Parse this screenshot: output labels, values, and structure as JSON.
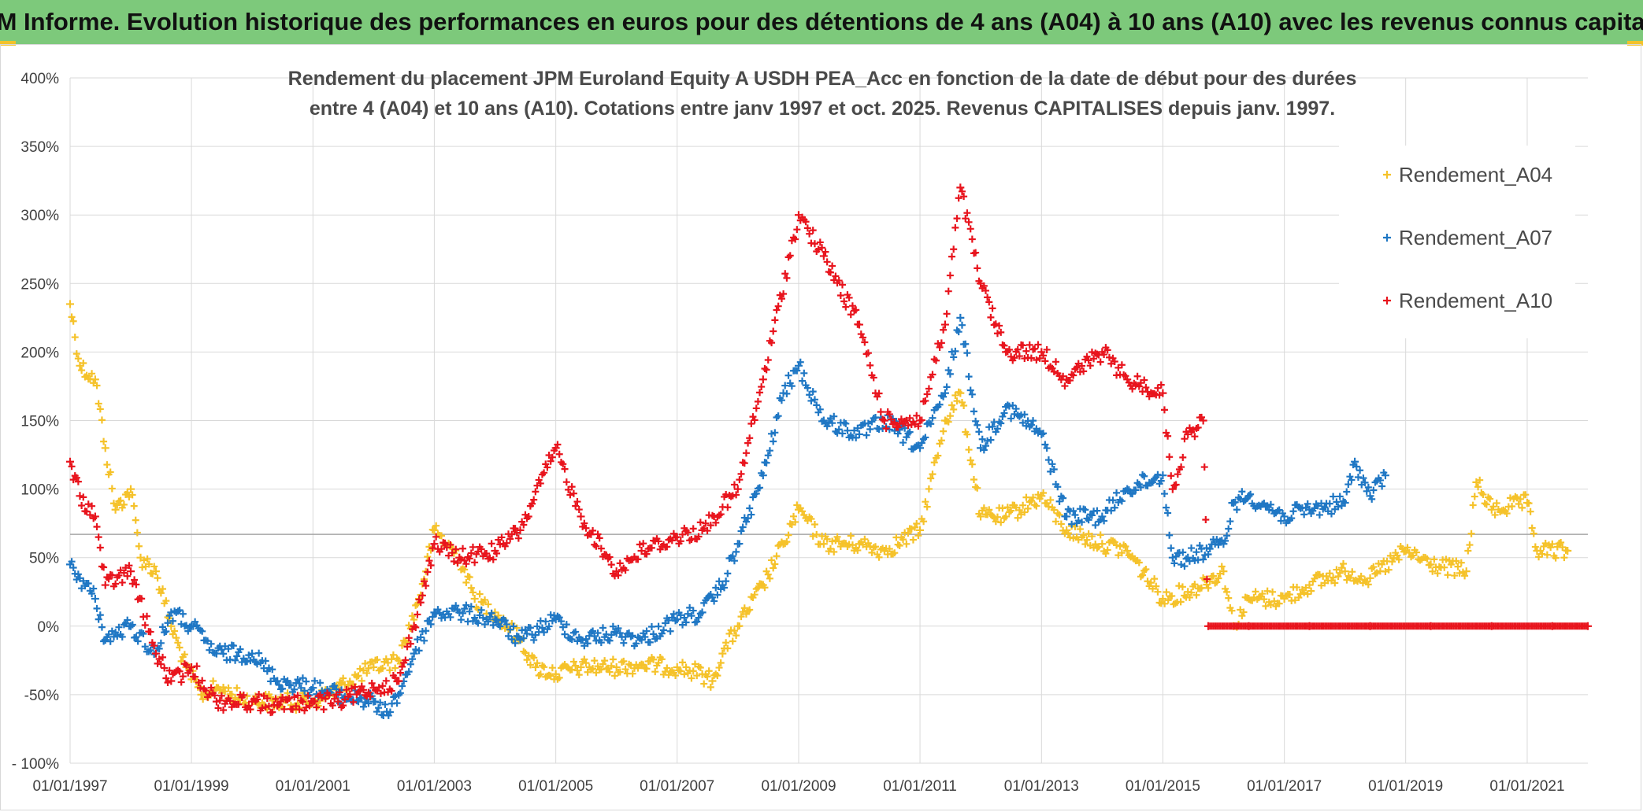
{
  "page": {
    "banner_title": "ADAM Informe. Evolution historique des performances en euros pour des détentions de 4 ans (A04) à 10 ans (A10) avec les revenus connus capitalisés"
  },
  "colors": {
    "banner": "#7dc97b",
    "A04": "#f5c22a",
    "A07": "#1f77c4",
    "A10": "#e8141d",
    "grid": "#d9d9d9",
    "refline": "#a6a6a6"
  },
  "chart_data": {
    "type": "scatter",
    "title_lines": [
      "Rendement du placement JPM Euroland Equity A USDH PEA_Acc en fonction de la date de début pour des durées",
      "entre 4 (A04) et 10 ans (A10). Cotations entre janv 1997 et oct. 2025. Revenus CAPITALISES depuis janv. 1997."
    ],
    "xlabel": "",
    "ylabel": "",
    "x_axis": {
      "type": "date",
      "min": "1997-01-01",
      "max": "2022-01-01",
      "tick_labels": [
        "01/01/1997",
        "01/01/1999",
        "01/01/2001",
        "01/01/2003",
        "01/01/2005",
        "01/01/2007",
        "01/01/2009",
        "01/01/2011",
        "01/01/2013",
        "01/01/2015",
        "01/01/2017",
        "01/01/2019",
        "01/01/2021"
      ]
    },
    "y_axis": {
      "min": -100,
      "max": 400,
      "unit": "%",
      "tick_labels": [
        "- 100%",
        "-50%",
        "0%",
        "50%",
        "100%",
        "150%",
        "200%",
        "250%",
        "300%",
        "350%",
        "400%"
      ]
    },
    "grid": true,
    "reference_line_y": 67,
    "legend_position": "top-right",
    "marker": "plus",
    "series": [
      {
        "name": "Rendement_A04",
        "color": "#f5c22a",
        "points": [
          [
            "1997-01-01",
            235
          ],
          [
            "1997-03-01",
            190
          ],
          [
            "1997-06-01",
            180
          ],
          [
            "1997-08-01",
            130
          ],
          [
            "1997-10-01",
            85
          ],
          [
            "1998-01-01",
            100
          ],
          [
            "1998-03-01",
            50
          ],
          [
            "1998-06-01",
            40
          ],
          [
            "1998-09-01",
            0
          ],
          [
            "1998-12-01",
            -30
          ],
          [
            "1999-03-01",
            -50
          ],
          [
            "1999-06-01",
            -45
          ],
          [
            "1999-09-01",
            -50
          ],
          [
            "2000-01-01",
            -55
          ],
          [
            "2000-06-01",
            -55
          ],
          [
            "2001-01-01",
            -55
          ],
          [
            "2001-06-01",
            -45
          ],
          [
            "2002-01-01",
            -30
          ],
          [
            "2002-06-01",
            -25
          ],
          [
            "2002-10-01",
            20
          ],
          [
            "2003-01-01",
            70
          ],
          [
            "2003-06-01",
            50
          ],
          [
            "2003-09-01",
            20
          ],
          [
            "2004-01-01",
            10
          ],
          [
            "2004-06-01",
            -10
          ],
          [
            "2004-09-01",
            -30
          ],
          [
            "2005-01-01",
            -35
          ],
          [
            "2005-06-01",
            -30
          ],
          [
            "2006-01-01",
            -30
          ],
          [
            "2006-06-01",
            -28
          ],
          [
            "2007-01-01",
            -30
          ],
          [
            "2007-06-01",
            -35
          ],
          [
            "2007-08-01",
            -40
          ],
          [
            "2007-10-01",
            -20
          ],
          [
            "2008-01-01",
            0
          ],
          [
            "2008-06-01",
            30
          ],
          [
            "2008-10-01",
            60
          ],
          [
            "2009-01-01",
            85
          ],
          [
            "2009-06-01",
            60
          ],
          [
            "2010-01-01",
            60
          ],
          [
            "2010-06-01",
            55
          ],
          [
            "2011-01-01",
            70
          ],
          [
            "2011-06-01",
            150
          ],
          [
            "2011-09-01",
            170
          ],
          [
            "2012-01-01",
            80
          ],
          [
            "2012-06-01",
            80
          ],
          [
            "2013-01-01",
            95
          ],
          [
            "2013-06-01",
            70
          ],
          [
            "2014-01-01",
            60
          ],
          [
            "2014-06-01",
            55
          ],
          [
            "2015-01-01",
            20
          ],
          [
            "2015-06-01",
            25
          ],
          [
            "2016-01-01",
            40
          ],
          [
            "2016-03-01",
            0
          ],
          [
            "2016-06-01",
            20
          ],
          [
            "2017-01-01",
            20
          ],
          [
            "2017-06-01",
            30
          ],
          [
            "2018-01-01",
            40
          ],
          [
            "2018-06-01",
            35
          ],
          [
            "2019-01-01",
            55
          ],
          [
            "2019-06-01",
            45
          ],
          [
            "2020-01-01",
            40
          ],
          [
            "2020-03-01",
            105
          ],
          [
            "2020-06-01",
            85
          ],
          [
            "2021-01-01",
            90
          ],
          [
            "2021-03-01",
            55
          ],
          [
            "2021-09-01",
            55
          ]
        ]
      },
      {
        "name": "Rendement_A07",
        "color": "#1f77c4",
        "points": [
          [
            "1997-01-01",
            45
          ],
          [
            "1997-03-01",
            35
          ],
          [
            "1997-06-01",
            20
          ],
          [
            "1997-08-01",
            -10
          ],
          [
            "1998-01-01",
            0
          ],
          [
            "1998-06-01",
            -20
          ],
          [
            "1998-09-01",
            10
          ],
          [
            "1999-01-01",
            0
          ],
          [
            "1999-06-01",
            -20
          ],
          [
            "2000-01-01",
            -20
          ],
          [
            "2000-06-01",
            -40
          ],
          [
            "2001-01-01",
            -45
          ],
          [
            "2001-06-01",
            -50
          ],
          [
            "2002-01-01",
            -55
          ],
          [
            "2002-03-01",
            -65
          ],
          [
            "2002-06-01",
            -50
          ],
          [
            "2002-09-01",
            -20
          ],
          [
            "2003-01-01",
            10
          ],
          [
            "2003-06-01",
            10
          ],
          [
            "2004-01-01",
            5
          ],
          [
            "2004-06-01",
            -10
          ],
          [
            "2005-01-01",
            5
          ],
          [
            "2005-06-01",
            -10
          ],
          [
            "2006-01-01",
            -5
          ],
          [
            "2006-06-01",
            -10
          ],
          [
            "2007-01-01",
            5
          ],
          [
            "2007-06-01",
            10
          ],
          [
            "2007-10-01",
            30
          ],
          [
            "2008-01-01",
            60
          ],
          [
            "2008-06-01",
            110
          ],
          [
            "2008-10-01",
            170
          ],
          [
            "2009-01-01",
            190
          ],
          [
            "2009-06-01",
            150
          ],
          [
            "2010-01-01",
            140
          ],
          [
            "2010-06-01",
            150
          ],
          [
            "2011-01-01",
            130
          ],
          [
            "2011-06-01",
            170
          ],
          [
            "2011-09-01",
            225
          ],
          [
            "2012-01-01",
            130
          ],
          [
            "2012-06-01",
            160
          ],
          [
            "2013-01-01",
            140
          ],
          [
            "2013-06-01",
            80
          ],
          [
            "2014-01-01",
            80
          ],
          [
            "2014-06-01",
            100
          ],
          [
            "2015-01-01",
            110
          ],
          [
            "2015-03-01",
            50
          ],
          [
            "2015-06-01",
            50
          ],
          [
            "2016-01-01",
            60
          ],
          [
            "2016-03-01",
            90
          ],
          [
            "2016-06-01",
            95
          ],
          [
            "2017-01-01",
            80
          ],
          [
            "2017-06-01",
            85
          ],
          [
            "2018-01-01",
            90
          ],
          [
            "2018-03-01",
            120
          ],
          [
            "2018-06-01",
            95
          ],
          [
            "2018-09-01",
            110
          ]
        ]
      },
      {
        "name": "Rendement_A10",
        "color": "#e8141d",
        "points": [
          [
            "1997-01-01",
            120
          ],
          [
            "1997-03-01",
            95
          ],
          [
            "1997-06-01",
            80
          ],
          [
            "1997-08-01",
            30
          ],
          [
            "1998-01-01",
            40
          ],
          [
            "1998-06-01",
            -20
          ],
          [
            "1998-09-01",
            -40
          ],
          [
            "1999-01-01",
            -30
          ],
          [
            "1999-06-01",
            -55
          ],
          [
            "2000-01-01",
            -55
          ],
          [
            "2000-06-01",
            -58
          ],
          [
            "2001-01-01",
            -55
          ],
          [
            "2001-06-01",
            -55
          ],
          [
            "2002-01-01",
            -45
          ],
          [
            "2002-06-01",
            -40
          ],
          [
            "2002-09-01",
            0
          ],
          [
            "2003-01-01",
            60
          ],
          [
            "2003-06-01",
            50
          ],
          [
            "2004-01-01",
            55
          ],
          [
            "2004-06-01",
            70
          ],
          [
            "2005-01-01",
            130
          ],
          [
            "2005-06-01",
            80
          ],
          [
            "2006-01-01",
            40
          ],
          [
            "2006-06-01",
            55
          ],
          [
            "2007-01-01",
            65
          ],
          [
            "2007-06-01",
            70
          ],
          [
            "2008-01-01",
            100
          ],
          [
            "2008-06-01",
            180
          ],
          [
            "2009-01-01",
            300
          ],
          [
            "2009-06-01",
            270
          ],
          [
            "2010-01-01",
            220
          ],
          [
            "2010-06-01",
            150
          ],
          [
            "2011-01-01",
            150
          ],
          [
            "2011-06-01",
            220
          ],
          [
            "2011-09-01",
            320
          ],
          [
            "2012-01-01",
            250
          ],
          [
            "2012-06-01",
            200
          ],
          [
            "2013-01-01",
            200
          ],
          [
            "2013-06-01",
            180
          ],
          [
            "2014-01-01",
            200
          ],
          [
            "2014-06-01",
            180
          ],
          [
            "2015-01-01",
            170
          ],
          [
            "2015-03-01",
            100
          ],
          [
            "2015-06-01",
            140
          ],
          [
            "2015-09-01",
            150
          ],
          [
            "2015-10-01",
            0
          ],
          [
            "2016-06-01",
            0
          ],
          [
            "2017-06-01",
            0
          ],
          [
            "2018-06-01",
            0
          ],
          [
            "2019-06-01",
            0
          ],
          [
            "2020-06-01",
            0
          ],
          [
            "2021-06-01",
            0
          ],
          [
            "2022-01-01",
            0
          ]
        ]
      }
    ]
  }
}
